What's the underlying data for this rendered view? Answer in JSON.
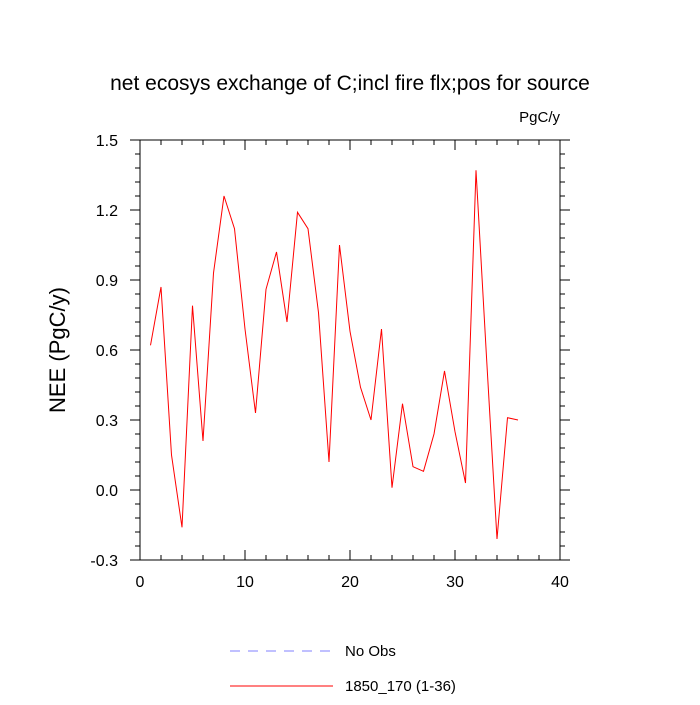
{
  "chart_data": {
    "type": "line",
    "title": "net ecosys exchange of C;incl fire flx;pos for source",
    "units": "PgC/y",
    "ylabel": "NEE  (PgC/y)",
    "xlabel": "",
    "xlim": [
      0,
      40
    ],
    "ylim": [
      -0.3,
      1.5
    ],
    "x_ticks": [
      0,
      10,
      20,
      30,
      40
    ],
    "y_ticks": [
      -0.3,
      0.0,
      0.3,
      0.6,
      0.9,
      1.2,
      1.5
    ],
    "x_tick_labels": [
      "0",
      "10",
      "20",
      "30",
      "40"
    ],
    "y_tick_labels": [
      "-0.3",
      "0.0",
      "0.3",
      "0.6",
      "0.9",
      "1.2",
      "1.5"
    ],
    "grid": false,
    "legend_position": "bottom",
    "series": [
      {
        "name": "No Obs",
        "color": "#8080ff",
        "dash": "dashed",
        "x": [],
        "values": []
      },
      {
        "name": "1850_170 (1-36)",
        "color": "#ff0000",
        "dash": "solid",
        "x": [
          1,
          2,
          3,
          4,
          5,
          6,
          7,
          8,
          9,
          10,
          11,
          12,
          13,
          14,
          15,
          16,
          17,
          18,
          19,
          20,
          21,
          22,
          23,
          24,
          25,
          26,
          27,
          28,
          29,
          30,
          31,
          32,
          33,
          34,
          35,
          36
        ],
        "values": [
          0.62,
          0.87,
          0.15,
          -0.16,
          0.79,
          0.21,
          0.93,
          1.26,
          1.12,
          0.69,
          0.33,
          0.86,
          1.02,
          0.72,
          1.19,
          1.12,
          0.76,
          0.12,
          1.05,
          0.68,
          0.44,
          0.3,
          0.69,
          0.01,
          0.37,
          0.1,
          0.08,
          0.24,
          0.51,
          0.25,
          0.03,
          1.37,
          0.57,
          -0.21,
          0.31,
          0.3
        ]
      }
    ]
  }
}
